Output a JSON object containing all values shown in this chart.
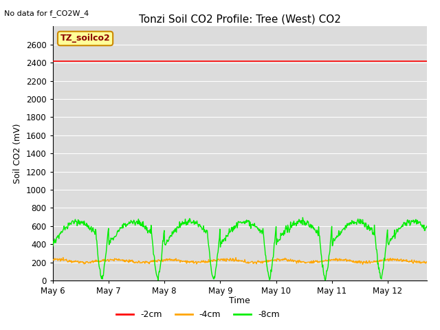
{
  "title": "Tonzi Soil CO2 Profile: Tree (West) CO2",
  "no_data_text": "No data for f_CO2W_4",
  "ylabel": "Soil CO2 (mV)",
  "xlabel": "Time",
  "ylim": [
    0,
    2800
  ],
  "yticks": [
    0,
    200,
    400,
    600,
    800,
    1000,
    1200,
    1400,
    1600,
    1800,
    2000,
    2200,
    2400,
    2600
  ],
  "legend_box_label": "TZ_soilco2",
  "legend_box_bg": "#FFFF99",
  "legend_box_edge": "#CC8800",
  "legend_box_text": "#8B0000",
  "colors": {
    "red": "#FF0000",
    "orange": "#FFA500",
    "green": "#00EE00"
  },
  "bg_color": "#DCDCDC",
  "grid_color": "#FFFFFF",
  "fig_bg": "#FFFFFF",
  "title_fontsize": 11,
  "axis_label_fontsize": 9,
  "tick_fontsize": 8.5,
  "legend_fontsize": 9,
  "line_red_value": 2420,
  "line_orange_base": 215,
  "figsize": [
    6.4,
    4.8
  ],
  "dpi": 100
}
